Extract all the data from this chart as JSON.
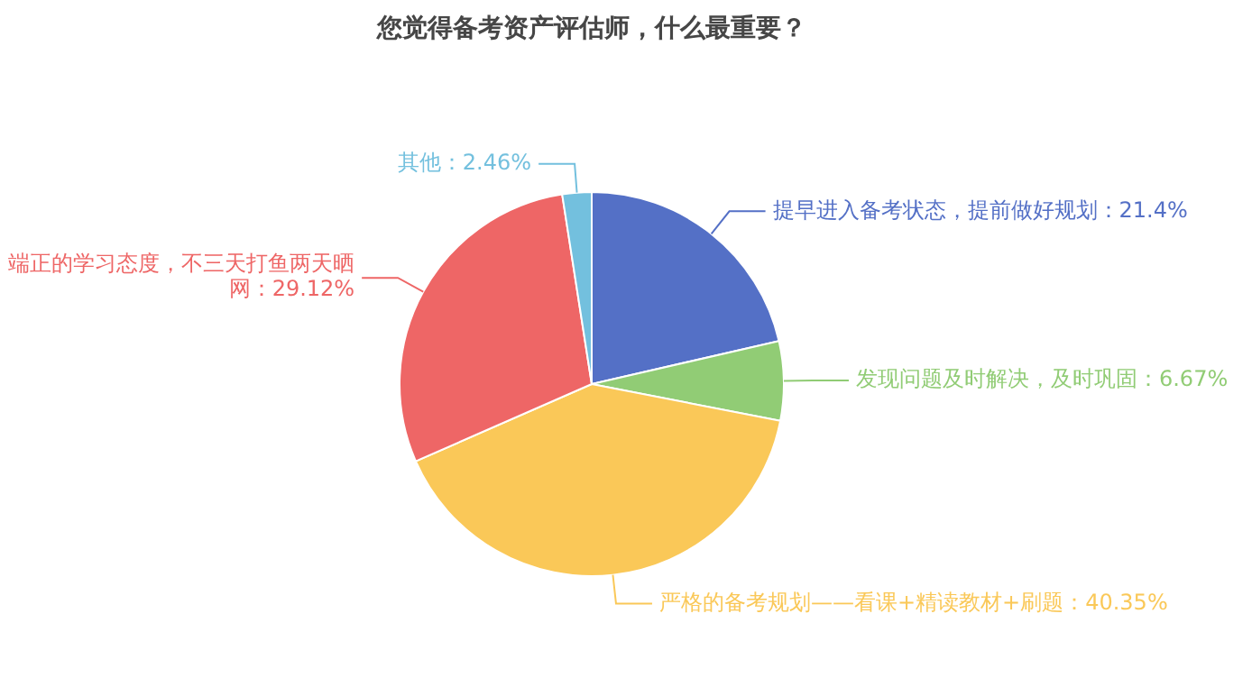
{
  "chart_data": {
    "type": "pie",
    "title": "您觉得备考资产评估师，什么最重要？",
    "categories": [
      "提早进入备考状态，提前做好规划",
      "发现问题及时解决，及时巩固",
      "严格的备考规划——看课+精读教材+刷题",
      "端正的学习态度，不三天打鱼两天晒网",
      "其他"
    ],
    "values": [
      21.4,
      6.67,
      40.35,
      29.12,
      2.46
    ],
    "value_labels": [
      "：21.4%",
      "：6.67%",
      "：40.35%",
      "：29.12%",
      "：2.46%"
    ],
    "colors": [
      "#5470c6",
      "#91cc75",
      "#fac858",
      "#ee6666",
      "#73c0de"
    ]
  }
}
